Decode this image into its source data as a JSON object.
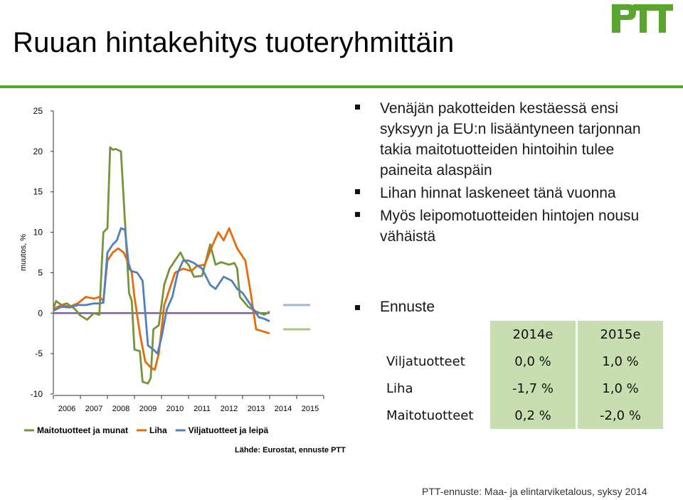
{
  "page": {
    "title": "Ruuan hintakehitys tuoteryhmittäin",
    "logo_text": "PTT",
    "source": "Lähde: Eurostat, ennuste PTT",
    "footer": "PTT-ennuste: Maa- ja elintarviketalous, syksy 2014"
  },
  "bullets": [
    "Venäjän pakotteiden kestäessä ensi syksyyn ja EU:n lisääntyneen tarjonnan takia maitotuotteiden hintoihin tulee paineita alaspäin",
    "Lihan hinnat laskeneet tänä vuonna",
    "Myös leipomotuotteiden hintojen nousu vähäistä"
  ],
  "forecast": {
    "heading": "Ennuste",
    "columns": [
      "2014e",
      "2015e"
    ],
    "rows": [
      {
        "label": "Viljatuotteet",
        "values": [
          "0,0 %",
          "1,0 %"
        ]
      },
      {
        "label": "Liha",
        "values": [
          "-1,7 %",
          "1,0 %"
        ]
      },
      {
        "label": "Maitotuotteet",
        "values": [
          "0,2 %",
          "-2,0 %"
        ]
      }
    ]
  },
  "colors": {
    "accent_green": "#5aa52e",
    "dairy": "#77933c",
    "meat": "#e46c0a",
    "cereal": "#4f81bd",
    "zero_line": "#7f5fa8",
    "table_fill": "#c8deb1"
  },
  "chart_data": {
    "type": "line",
    "ylabel": "muutos, %",
    "ylim": [
      -10,
      25
    ],
    "yticks": [
      -10,
      -5,
      0,
      5,
      10,
      15,
      20,
      25
    ],
    "xlim": [
      2006,
      2016
    ],
    "xtick_labels": [
      "2006",
      "2007",
      "2008",
      "2009",
      "2010",
      "2011",
      "2012",
      "2013",
      "2014",
      "2015"
    ],
    "grid": false,
    "legend_position": "bottom",
    "series": [
      {
        "name": "Maitotuotteet ja munat",
        "color": "#77933c",
        "x": [
          2006.0,
          2006.1,
          2006.3,
          2006.5,
          2006.8,
          2007.0,
          2007.25,
          2007.5,
          2007.7,
          2007.85,
          2008.0,
          2008.1,
          2008.2,
          2008.3,
          2008.5,
          2008.8,
          2008.9,
          2009.0,
          2009.2,
          2009.3,
          2009.5,
          2009.6,
          2009.7,
          2009.9,
          2010.1,
          2010.3,
          2010.5,
          2010.7,
          2010.85,
          2011.0,
          2011.2,
          2011.5,
          2011.8,
          2012.0,
          2012.2,
          2012.5,
          2012.7,
          2012.8,
          2012.9,
          2013.2,
          2013.5,
          2013.8,
          2014.0
        ],
        "y": [
          0.5,
          1.5,
          1.0,
          1.2,
          0.5,
          -0.3,
          -0.8,
          0,
          -0.2,
          10.0,
          10.5,
          20.5,
          20.2,
          20.3,
          20.0,
          2.5,
          1.5,
          -4.5,
          -4.7,
          -8.5,
          -8.7,
          -8.0,
          -2.0,
          -1.5,
          3.5,
          5.5,
          6.5,
          7.5,
          6.5,
          6.0,
          4.5,
          4.6,
          8.5,
          6.0,
          6.3,
          6.0,
          6.2,
          5.5,
          2.0,
          0.8,
          0.2,
          -0.2,
          0.2
        ]
      },
      {
        "name": "Liha",
        "color": "#e46c0a",
        "x": [
          2006.0,
          2006.3,
          2006.6,
          2006.9,
          2007.2,
          2007.5,
          2007.7,
          2007.85,
          2008.0,
          2008.2,
          2008.4,
          2008.6,
          2008.8,
          2008.9,
          2009.0,
          2009.2,
          2009.4,
          2009.6,
          2009.75,
          2009.9,
          2010.1,
          2010.25,
          2010.5,
          2010.8,
          2011.1,
          2011.3,
          2011.6,
          2011.9,
          2012.1,
          2012.3,
          2012.5,
          2012.8,
          2013.1,
          2013.3,
          2013.5,
          2013.7,
          2014.0
        ],
        "y": [
          0.5,
          1.0,
          0.8,
          1.2,
          2.0,
          1.8,
          2.0,
          1.5,
          6.5,
          7.5,
          8.0,
          7.5,
          6.0,
          5.0,
          2.0,
          -2.5,
          -6.0,
          -6.7,
          -7.0,
          -5.0,
          1.0,
          2.5,
          5.0,
          5.5,
          5.2,
          5.8,
          6.0,
          8.5,
          10.0,
          9.0,
          10.5,
          8.0,
          6.5,
          2.5,
          -2.0,
          -2.2,
          -2.5
        ]
      },
      {
        "name": "Viljatuotteet ja leipä",
        "color": "#4f81bd",
        "x": [
          2006.0,
          2006.3,
          2006.6,
          2006.9,
          2007.2,
          2007.5,
          2007.7,
          2007.85,
          2008.0,
          2008.2,
          2008.35,
          2008.5,
          2008.65,
          2008.8,
          2008.9,
          2009.1,
          2009.3,
          2009.5,
          2009.7,
          2009.85,
          2010.0,
          2010.2,
          2010.4,
          2010.6,
          2010.8,
          2011.0,
          2011.2,
          2011.5,
          2011.8,
          2012.0,
          2012.3,
          2012.6,
          2012.8,
          2013.0,
          2013.2,
          2013.4,
          2013.6,
          2013.8,
          2014.0
        ],
        "y": [
          0.3,
          0.8,
          0.7,
          1.0,
          1.0,
          1.2,
          1.2,
          1.3,
          7.5,
          8.5,
          9.0,
          10.5,
          10.3,
          5.5,
          5.2,
          5.0,
          4.0,
          -4.0,
          -4.5,
          -5.0,
          -3.0,
          0.5,
          2.0,
          5.0,
          6.5,
          6.5,
          6.2,
          5.5,
          3.5,
          3.0,
          4.5,
          4.0,
          3.0,
          2.5,
          1.5,
          0.5,
          -0.5,
          -0.7,
          -1.0
        ]
      }
    ],
    "zero_line": {
      "y": 0,
      "x_range": [
        2006,
        2014
      ],
      "color": "#7f5fa8"
    },
    "forecast_marks": [
      {
        "series": "Viljatuotteet ja leipä",
        "y": 1.0,
        "x_range": [
          2014.5,
          2015.5
        ],
        "color": "#9bb7dc"
      },
      {
        "series": "Maitotuotteet ja munat",
        "y": -2.0,
        "x_range": [
          2014.5,
          2015.5
        ],
        "color": "#a8c47c"
      }
    ]
  }
}
